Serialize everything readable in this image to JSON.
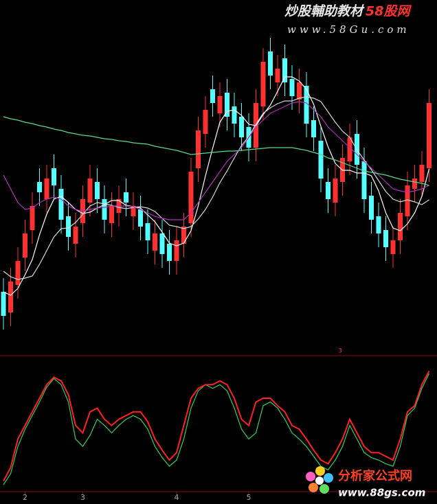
{
  "chart_data": [
    {
      "type": "candlestick",
      "categories": [
        null,
        null,
        null,
        "2",
        null,
        null,
        null,
        null,
        null,
        null,
        null,
        "3",
        null,
        null,
        null,
        null,
        null,
        null,
        null,
        null,
        null,
        null,
        null,
        null,
        "4",
        null,
        null,
        null,
        null,
        null,
        null,
        null,
        null,
        null,
        "5",
        null,
        null,
        null,
        null,
        null,
        null,
        null,
        null,
        null,
        null,
        null,
        null,
        null,
        null,
        null,
        null,
        null,
        null,
        null,
        null,
        null,
        null,
        null,
        null,
        null
      ],
      "open": [
        90,
        60,
        100,
        140,
        180,
        250,
        225,
        270,
        240,
        200,
        160,
        190,
        220,
        250,
        225,
        190,
        205,
        235,
        200,
        210,
        190,
        150,
        175,
        160,
        135,
        160,
        190,
        270,
        320,
        385,
        350,
        380,
        360,
        345,
        330,
        300,
        360,
        440,
        395,
        430,
        400,
        370,
        390,
        340,
        310,
        250,
        220,
        250,
        280,
        320,
        280,
        230,
        200,
        180,
        145,
        165,
        200,
        240,
        250,
        270
      ],
      "high": [
        110,
        125,
        155,
        195,
        235,
        270,
        275,
        290,
        260,
        220,
        205,
        245,
        275,
        270,
        245,
        235,
        245,
        255,
        235,
        230,
        210,
        195,
        195,
        180,
        185,
        205,
        285,
        345,
        375,
        405,
        395,
        400,
        380,
        365,
        350,
        385,
        445,
        460,
        435,
        450,
        420,
        415,
        410,
        360,
        330,
        270,
        275,
        305,
        335,
        340,
        300,
        250,
        220,
        200,
        185,
        225,
        265,
        275,
        295,
        385
      ],
      "low": [
        35,
        40,
        80,
        120,
        160,
        215,
        205,
        225,
        175,
        150,
        140,
        170,
        200,
        205,
        175,
        170,
        185,
        200,
        180,
        165,
        145,
        130,
        125,
        115,
        115,
        140,
        170,
        250,
        300,
        345,
        330,
        325,
        315,
        295,
        280,
        280,
        340,
        385,
        375,
        375,
        355,
        350,
        315,
        295,
        235,
        205,
        200,
        230,
        260,
        255,
        205,
        175,
        155,
        135,
        125,
        145,
        180,
        220,
        230,
        250
      ],
      "close": [
        55,
        105,
        135,
        175,
        215,
        235,
        255,
        245,
        195,
        170,
        185,
        225,
        255,
        225,
        195,
        215,
        225,
        220,
        215,
        185,
        165,
        175,
        145,
        135,
        165,
        185,
        265,
        325,
        355,
        365,
        375,
        345,
        335,
        315,
        300,
        365,
        425,
        405,
        415,
        395,
        375,
        395,
        335,
        315,
        255,
        225,
        255,
        285,
        315,
        275,
        225,
        195,
        175,
        155,
        165,
        205,
        245,
        255,
        275,
        365
      ],
      "up_color": "#ff3030",
      "down_color": "#54ffff",
      "ylim": [
        0,
        515
      ],
      "lines": [
        {
          "color": "#ffffff",
          "values": [
            90,
            85,
            95,
            115,
            137,
            173,
            203,
            225,
            229,
            220,
            210,
            204,
            206,
            212,
            217,
            223,
            223,
            216,
            214,
            212,
            202,
            192,
            177,
            161,
            157,
            161,
            179,
            215,
            259,
            299,
            337,
            353,
            355,
            347,
            334,
            332,
            348,
            362,
            382,
            403,
            403,
            397,
            385,
            363,
            331,
            301,
            277,
            267,
            267,
            263,
            263,
            259,
            237,
            205,
            183,
            179,
            189,
            205,
            229,
            269
          ]
        },
        {
          "color": "#d8d8d8",
          "values": [
            120,
            112,
            108,
            110,
            113,
            130,
            150,
            170,
            182,
            183,
            191,
            203,
            215,
            220,
            218,
            216,
            213,
            211,
            213,
            214,
            212,
            207,
            197,
            187,
            185,
            182,
            185,
            196,
            210,
            228,
            249,
            266,
            285,
            303,
            316,
            334,
            350,
            358,
            364,
            368,
            368,
            372,
            374,
            372,
            367,
            352,
            337,
            324,
            315,
            297,
            282,
            268,
            252,
            236,
            225,
            221,
            224,
            221,
            217,
            224
          ]
        },
        {
          "color": "#b030b8",
          "values": [
            260,
            240,
            220,
            210,
            212,
            220,
            225,
            228,
            225,
            215,
            210,
            207,
            210,
            212,
            213,
            215,
            215,
            215,
            214,
            210,
            205,
            200,
            197,
            195,
            195,
            195,
            205,
            220,
            235,
            250,
            265,
            280,
            290,
            300,
            315,
            330,
            340,
            350,
            355,
            360,
            365,
            367,
            365,
            355,
            345,
            330,
            320,
            310,
            300,
            290,
            280,
            270,
            260,
            250,
            240,
            237,
            235,
            237,
            240,
            245
          ]
        },
        {
          "color": "#60d890",
          "values": [
            345,
            342,
            340,
            337,
            335,
            332,
            330,
            327,
            325,
            322,
            320,
            318,
            317,
            315,
            313,
            312,
            310,
            309,
            307,
            306,
            305,
            302,
            300,
            298,
            296,
            293,
            290,
            291,
            292,
            293,
            294,
            295,
            295,
            296,
            297,
            298,
            299,
            300,
            300,
            300,
            300,
            298,
            296,
            293,
            290,
            285,
            282,
            278,
            274,
            270,
            266,
            264,
            262,
            260,
            257,
            254,
            252,
            250,
            248,
            245
          ]
        }
      ],
      "annotation": "3"
    },
    {
      "type": "line",
      "ylim": [
        0,
        100
      ],
      "series": [
        {
          "color": "#30d060",
          "values": [
            5,
            14,
            36,
            50,
            61,
            72,
            84,
            91,
            86,
            72,
            42,
            36,
            45,
            58,
            53,
            47,
            53,
            58,
            61,
            58,
            50,
            36,
            27,
            20,
            25,
            42,
            67,
            81,
            86,
            83,
            86,
            81,
            67,
            50,
            42,
            47,
            69,
            72,
            67,
            58,
            47,
            42,
            36,
            28,
            20,
            17,
            25,
            36,
            53,
            42,
            31,
            27,
            25,
            22,
            20,
            36,
            61,
            67,
            83,
            95
          ]
        },
        {
          "color": "#ff2020",
          "values": [
            8,
            19,
            42,
            53,
            64,
            75,
            86,
            92,
            89,
            78,
            53,
            47,
            64,
            67,
            58,
            53,
            58,
            61,
            64,
            64,
            56,
            42,
            33,
            25,
            31,
            53,
            75,
            83,
            86,
            86,
            89,
            86,
            75,
            58,
            53,
            72,
            75,
            75,
            69,
            64,
            53,
            50,
            42,
            33,
            25,
            22,
            31,
            42,
            58,
            47,
            36,
            31,
            31,
            28,
            25,
            42,
            64,
            69,
            86,
            97
          ]
        }
      ]
    }
  ],
  "watermarks": {
    "top_title": "炒股輔助教材",
    "top_site": "58股网",
    "top_url": "www.58Gu.com",
    "bottom_site": "分析家公式网",
    "bottom_url": "www.88gs.com"
  }
}
